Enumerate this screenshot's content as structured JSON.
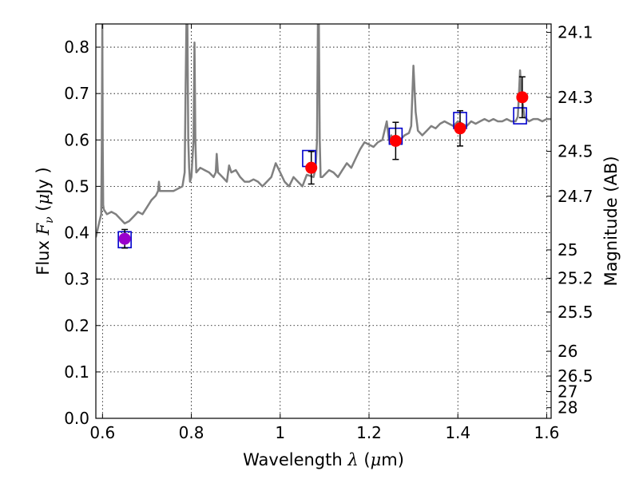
{
  "chart_data": {
    "type": "scatter",
    "xlabel": "Wavelength",
    "xlabel_symbol": "λ",
    "xlabel_unit_open": "(",
    "xlabel_unit_mu": "μ",
    "xlabel_unit_rest": "m)",
    "ylabel": "Flux",
    "ylabel_symbol": "F",
    "ylabel_sub": "ν",
    "ylabel_unit_open": "(",
    "ylabel_unit_mu": "μ",
    "ylabel_unit_rest": "Jy )",
    "y2label": "Magnitude (AB)",
    "xlim": [
      0.585,
      1.61
    ],
    "ylim": [
      0.0,
      0.85
    ],
    "grid": true,
    "xticks": [
      0.6,
      0.8,
      1.0,
      1.2,
      1.4,
      1.6
    ],
    "xtick_labels": [
      "0.6",
      "0.8",
      "1",
      "1.2",
      "1.4",
      "1.6"
    ],
    "yticks": [
      0.0,
      0.1,
      0.2,
      0.3,
      0.4,
      0.5,
      0.6,
      0.7,
      0.8
    ],
    "ytick_labels": [
      "0.0",
      "0.1",
      "0.2",
      "0.3",
      "0.4",
      "0.5",
      "0.6",
      "0.7",
      "0.8"
    ],
    "y2ticks": [
      24.1,
      24.3,
      24.5,
      24.7,
      25,
      25.2,
      25.5,
      26,
      26.5,
      27,
      28
    ],
    "y2tick_labels": [
      "24.1",
      "24.3",
      "24.5",
      "24.7",
      "25",
      "25.2",
      "25.5",
      "26",
      "26.5",
      "27",
      "28"
    ],
    "colors": {
      "spectrum": "#808080",
      "observed": "#ff0000",
      "model": "#0000cc",
      "blend": "#9900cc",
      "error": "#000000"
    },
    "spectrum": {
      "x": [
        0.585,
        0.592,
        0.597,
        0.5985,
        0.5995,
        0.6005,
        0.6015,
        0.603,
        0.61,
        0.62,
        0.63,
        0.64,
        0.65,
        0.66,
        0.67,
        0.68,
        0.69,
        0.7,
        0.71,
        0.72,
        0.725,
        0.727,
        0.729,
        0.731,
        0.74,
        0.75,
        0.76,
        0.77,
        0.78,
        0.785,
        0.787,
        0.789,
        0.791,
        0.793,
        0.795,
        0.797,
        0.8,
        0.805,
        0.807,
        0.809,
        0.811,
        0.82,
        0.83,
        0.84,
        0.85,
        0.855,
        0.857,
        0.86,
        0.87,
        0.88,
        0.885,
        0.89,
        0.9,
        0.91,
        0.92,
        0.93,
        0.94,
        0.95,
        0.96,
        0.97,
        0.98,
        0.99,
        1.0,
        1.01,
        1.02,
        1.03,
        1.04,
        1.05,
        1.06,
        1.075,
        1.08,
        1.083,
        1.085,
        1.087,
        1.089,
        1.091,
        1.095,
        1.1,
        1.11,
        1.12,
        1.13,
        1.14,
        1.15,
        1.16,
        1.17,
        1.18,
        1.19,
        1.2,
        1.21,
        1.22,
        1.23,
        1.24,
        1.245,
        1.25,
        1.26,
        1.27,
        1.28,
        1.29,
        1.295,
        1.3,
        1.305,
        1.31,
        1.32,
        1.33,
        1.34,
        1.35,
        1.36,
        1.37,
        1.38,
        1.39,
        1.4,
        1.41,
        1.42,
        1.43,
        1.44,
        1.45,
        1.46,
        1.47,
        1.48,
        1.49,
        1.5,
        1.51,
        1.52,
        1.53,
        1.535,
        1.54,
        1.543,
        1.55,
        1.56,
        1.57,
        1.58,
        1.59,
        1.6,
        1.61
      ],
      "y": [
        0.39,
        0.42,
        0.44,
        0.6,
        0.85,
        0.6,
        0.46,
        0.45,
        0.44,
        0.445,
        0.44,
        0.43,
        0.42,
        0.425,
        0.435,
        0.445,
        0.44,
        0.455,
        0.47,
        0.48,
        0.49,
        0.51,
        0.49,
        0.49,
        0.49,
        0.49,
        0.49,
        0.495,
        0.5,
        0.53,
        0.7,
        0.85,
        0.85,
        0.6,
        0.54,
        0.51,
        0.52,
        0.6,
        0.81,
        0.6,
        0.53,
        0.54,
        0.535,
        0.53,
        0.52,
        0.53,
        0.57,
        0.53,
        0.52,
        0.51,
        0.545,
        0.53,
        0.535,
        0.52,
        0.51,
        0.51,
        0.515,
        0.51,
        0.5,
        0.51,
        0.52,
        0.55,
        0.53,
        0.51,
        0.5,
        0.52,
        0.51,
        0.5,
        0.525,
        0.52,
        0.54,
        0.6,
        0.85,
        0.85,
        0.6,
        0.52,
        0.52,
        0.525,
        0.535,
        0.53,
        0.52,
        0.535,
        0.55,
        0.54,
        0.56,
        0.58,
        0.595,
        0.59,
        0.585,
        0.595,
        0.6,
        0.64,
        0.6,
        0.61,
        0.59,
        0.6,
        0.61,
        0.615,
        0.63,
        0.76,
        0.66,
        0.62,
        0.61,
        0.62,
        0.63,
        0.625,
        0.635,
        0.64,
        0.635,
        0.63,
        0.64,
        0.635,
        0.63,
        0.64,
        0.635,
        0.64,
        0.645,
        0.64,
        0.645,
        0.64,
        0.64,
        0.645,
        0.64,
        0.64,
        0.65,
        0.75,
        0.7,
        0.65,
        0.64,
        0.645,
        0.645,
        0.64,
        0.645,
        0.645
      ]
    },
    "observed": [
      {
        "x": 0.65,
        "y": 0.387,
        "err": 0.02
      },
      {
        "x": 1.07,
        "y": 0.54,
        "err": 0.035
      },
      {
        "x": 1.26,
        "y": 0.598,
        "err": 0.04
      },
      {
        "x": 1.405,
        "y": 0.625,
        "err": 0.038
      },
      {
        "x": 1.545,
        "y": 0.692,
        "err": 0.044
      }
    ],
    "model": [
      {
        "x": 0.65,
        "y": 0.385
      },
      {
        "x": 1.065,
        "y": 0.56
      },
      {
        "x": 1.26,
        "y": 0.608
      },
      {
        "x": 1.405,
        "y": 0.642
      },
      {
        "x": 1.54,
        "y": 0.652
      }
    ]
  }
}
